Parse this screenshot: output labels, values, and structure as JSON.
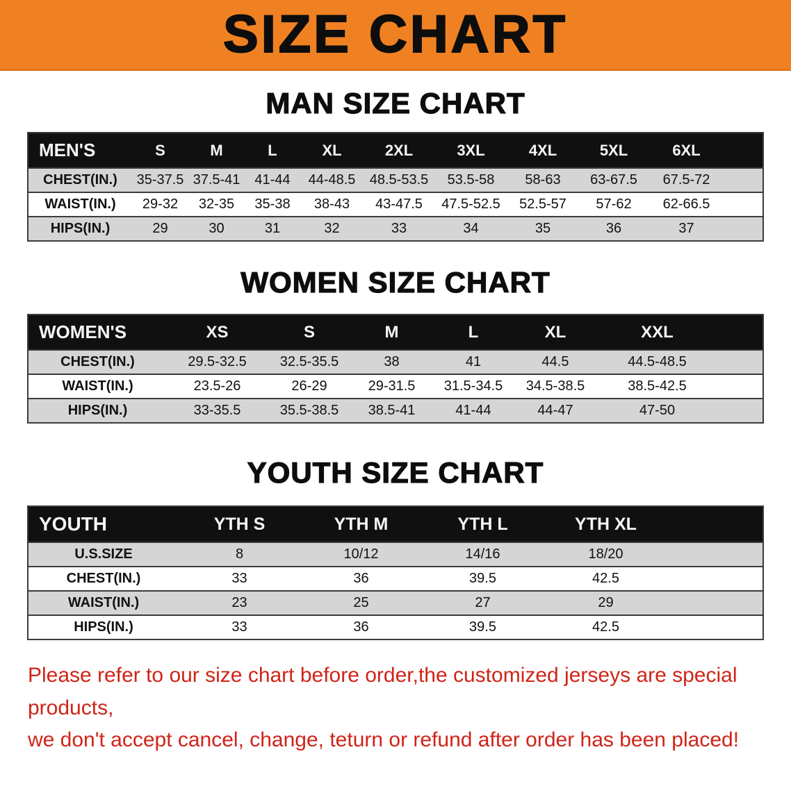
{
  "banner": {
    "title": "SIZE CHART",
    "bg_color": "#f08122"
  },
  "sections": [
    {
      "heading": "MAN SIZE CHART",
      "table": {
        "header": [
          "MEN'S",
          "S",
          "M",
          "L",
          "XL",
          "2XL",
          "3XL",
          "4XL",
          "5XL",
          "6XL"
        ],
        "rows": [
          [
            "CHEST(IN.)",
            "35-37.5",
            "37.5-41",
            "41-44",
            "44-48.5",
            "48.5-53.5",
            "53.5-58",
            "58-63",
            "63-67.5",
            "67.5-72"
          ],
          [
            "WAIST(IN.)",
            "29-32",
            "32-35",
            "35-38",
            "38-43",
            "43-47.5",
            "47.5-52.5",
            "52.5-57",
            "57-62",
            "62-66.5"
          ],
          [
            "HIPS(IN.)",
            "29",
            "30",
            "31",
            "32",
            "33",
            "34",
            "35",
            "36",
            "37"
          ]
        ]
      }
    },
    {
      "heading": "WOMEN SIZE CHART",
      "table": {
        "header": [
          "WOMEN'S",
          "XS",
          "S",
          "M",
          "L",
          "XL",
          "XXL"
        ],
        "rows": [
          [
            "CHEST(IN.)",
            "29.5-32.5",
            "32.5-35.5",
            "38",
            "41",
            "44.5",
            "44.5-48.5"
          ],
          [
            "WAIST(IN.)",
            "23.5-26",
            "26-29",
            "29-31.5",
            "31.5-34.5",
            "34.5-38.5",
            "38.5-42.5"
          ],
          [
            "HIPS(IN.)",
            "33-35.5",
            "35.5-38.5",
            "38.5-41",
            "41-44",
            "44-47",
            "47-50"
          ]
        ]
      }
    },
    {
      "heading": "YOUTH SIZE CHART",
      "table": {
        "header": [
          "YOUTH",
          "YTH S",
          "YTH M",
          "YTH L",
          "YTH XL"
        ],
        "rows": [
          [
            "U.S.SIZE",
            "8",
            "10/12",
            "14/16",
            "18/20"
          ],
          [
            "CHEST(IN.)",
            "33",
            "36",
            "39.5",
            "42.5"
          ],
          [
            "WAIST(IN.)",
            "23",
            "25",
            "27",
            "29"
          ],
          [
            "HIPS(IN.)",
            "33",
            "36",
            "39.5",
            "42.5"
          ]
        ]
      }
    }
  ],
  "note": {
    "line1": "Please refer to our size chart before order,the customized jerseys are special products,",
    "line2": "we don't accept cancel, change, teturn or refund after order has been placed!",
    "color": "#d02418"
  }
}
